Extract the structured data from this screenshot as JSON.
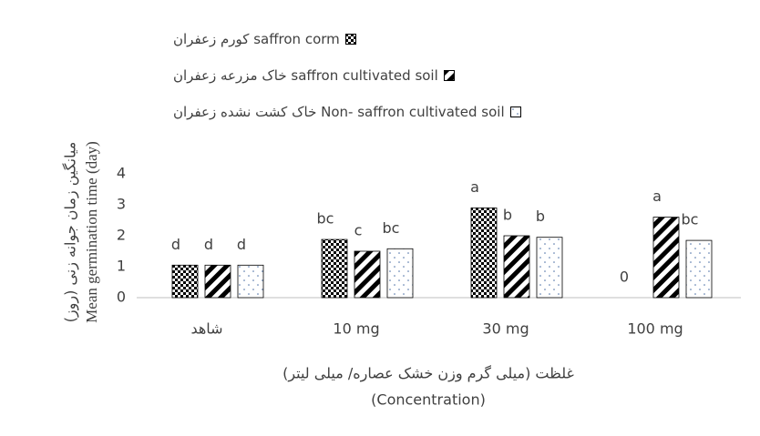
{
  "chart_data": {
    "type": "bar",
    "ylabel": [
      "میانگین زمان جوانه زنی (روز)",
      "Mean germination time (day)"
    ],
    "xlabel": [
      "غلظت (میلی گرم وزن خشک عصاره/ میلی لیتر)",
      "(Concentration)"
    ],
    "categories": [
      "شاهد",
      "10 mg",
      "30 mg",
      "100 mg"
    ],
    "series": [
      {
        "name": "saffron corm کورم زعفران",
        "color": "#000000",
        "pattern": "checker",
        "values": [
          1.05,
          1.88,
          2.9,
          0
        ],
        "letters": [
          "d",
          "bc",
          "a",
          "0"
        ]
      },
      {
        "name": "saffron cultivated soil خاک مزرعه زعفران",
        "color": "#000000",
        "pattern": "stripes",
        "values": [
          1.05,
          1.5,
          2.0,
          2.6
        ],
        "letters": [
          "d",
          "c",
          "b",
          "a"
        ]
      },
      {
        "name": "Non- saffron cultivated soil خاک کشت نشده زعفران",
        "color": "#000000",
        "pattern": "dots",
        "values": [
          1.05,
          1.58,
          1.95,
          1.85
        ],
        "letters": [
          "d",
          "bc",
          "b",
          "bc"
        ]
      }
    ],
    "ylim": [
      0,
      4
    ],
    "yticks": [
      0,
      1,
      2,
      3,
      4
    ],
    "grid": false,
    "legend": "top-left"
  }
}
